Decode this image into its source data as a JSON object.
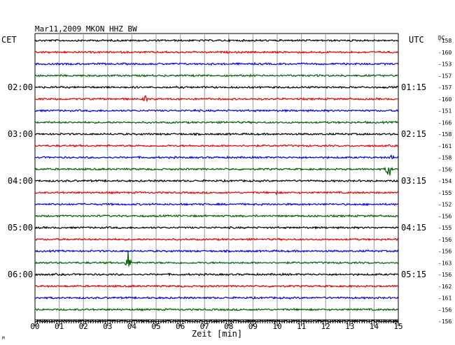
{
  "chart_data": {
    "type": "line",
    "title": "Mar11,2009   MKON HHZ BW",
    "left_timezone": "CET",
    "right_timezone": "UTC",
    "dc_label": "DC",
    "xlabel": "Zeit [min]",
    "xlim": [
      0,
      15
    ],
    "x_ticks": [
      "00",
      "01",
      "02",
      "03",
      "04",
      "05",
      "06",
      "07",
      "08",
      "09",
      "10",
      "11",
      "12",
      "13",
      "14",
      "15"
    ],
    "grid": true,
    "trace_colors": [
      "#000000",
      "#e00000",
      "#0000e0",
      "#006000"
    ],
    "left_hour_labels": [
      {
        "trace": 4,
        "label": "02:00"
      },
      {
        "trace": 8,
        "label": "03:00"
      },
      {
        "trace": 12,
        "label": "04:00"
      },
      {
        "trace": 16,
        "label": "05:00"
      },
      {
        "trace": 20,
        "label": "06:00"
      }
    ],
    "right_hour_labels": [
      {
        "trace": 4,
        "label": "01:15"
      },
      {
        "trace": 8,
        "label": "02:15"
      },
      {
        "trace": 12,
        "label": "03:15"
      },
      {
        "trace": 16,
        "label": "04:15"
      },
      {
        "trace": 20,
        "label": "05:15"
      }
    ],
    "dc_offsets": [
      "-158",
      "-160",
      "-153",
      "-157",
      "-157",
      "-160",
      "-151",
      "-166",
      "-158",
      "-161",
      "-158",
      "-156",
      "-154",
      "-155",
      "-152",
      "-156",
      "-155",
      "-156",
      "-156",
      "-163",
      "-156",
      "-162",
      "-161",
      "-156",
      "-156"
    ],
    "events": [
      {
        "trace": 5,
        "minute": 4.55,
        "amplitude": 9
      },
      {
        "trace": 6,
        "minute": 6.6,
        "amplitude": 3
      },
      {
        "trace": 8,
        "minute": 5.3,
        "amplitude": 2
      },
      {
        "trace": 10,
        "minute": 14.75,
        "amplitude": 6
      },
      {
        "trace": 11,
        "minute": 14.6,
        "amplitude": 22
      },
      {
        "trace": 13,
        "minute": 10.0,
        "amplitude": 4
      },
      {
        "trace": 19,
        "minute": 3.85,
        "amplitude": 20
      }
    ],
    "corner_mark": "M"
  }
}
